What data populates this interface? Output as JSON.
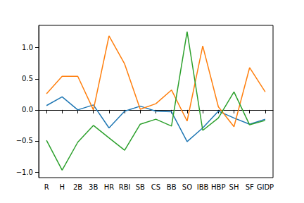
{
  "chart_data": {
    "type": "line",
    "categories": [
      "R",
      "H",
      "2B",
      "3B",
      "HR",
      "RBI",
      "SB",
      "CS",
      "BB",
      "SO",
      "IBB",
      "HBP",
      "SH",
      "SF",
      "GIDP"
    ],
    "series": [
      {
        "color": "#1f77b4",
        "values": [
          0.07,
          0.21,
          0.0,
          0.08,
          -0.29,
          -0.02,
          0.06,
          -0.02,
          -0.03,
          -0.51,
          -0.29,
          -0.02,
          -0.13,
          -0.23,
          -0.15
        ]
      },
      {
        "color": "#ff7f0e",
        "values": [
          0.26,
          0.54,
          0.54,
          0.0,
          1.19,
          0.74,
          0.01,
          0.1,
          0.32,
          -0.18,
          1.03,
          0.05,
          -0.27,
          0.68,
          0.29
        ]
      },
      {
        "color": "#2ca02c",
        "values": [
          -0.49,
          -0.97,
          -0.52,
          -0.25,
          -0.45,
          -0.65,
          -0.23,
          -0.15,
          -0.26,
          1.26,
          -0.33,
          -0.13,
          0.29,
          -0.24,
          -0.17
        ]
      }
    ],
    "ylim": [
      -1.09,
      1.36
    ],
    "yticks": [
      {
        "value": -1.0,
        "label": "−1.0"
      },
      {
        "value": -0.5,
        "label": "−0.5"
      },
      {
        "value": 0.0,
        "label": "0.0"
      },
      {
        "value": 0.5,
        "label": "0.5"
      },
      {
        "value": 1.0,
        "label": "1.0"
      }
    ],
    "grid": false
  }
}
